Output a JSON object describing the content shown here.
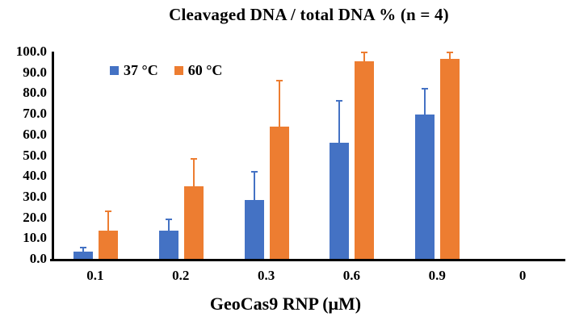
{
  "chart_data": {
    "type": "bar",
    "title": "Cleavaged DNA / total DNA % (n = 4)",
    "xlabel": "GeoCas9 RNP (μM)",
    "ylabel": "",
    "ylim": [
      0,
      100
    ],
    "ytick_step": 10,
    "yticks": [
      "0.0",
      "10.0",
      "20.0",
      "30.0",
      "40.0",
      "50.0",
      "60.0",
      "70.0",
      "80.0",
      "90.0",
      "100.0"
    ],
    "grid": false,
    "legend_position": "top-left-inside",
    "categories": [
      "0.1",
      "0.2",
      "0.3",
      "0.6",
      "0.9",
      "0"
    ],
    "series": [
      {
        "name": "37 °C",
        "color": "#4472C4",
        "values": [
          3.5,
          13.5,
          28.5,
          56,
          69.5,
          0
        ],
        "errors_plus": [
          2.3,
          6,
          14,
          20.5,
          13,
          0
        ]
      },
      {
        "name": "60 °C",
        "color": "#ED7D31",
        "values": [
          13.5,
          35,
          64,
          95.5,
          96.5,
          0
        ],
        "errors_plus": [
          10,
          13.5,
          22.5,
          4.5,
          3.5,
          0
        ]
      }
    ]
  }
}
